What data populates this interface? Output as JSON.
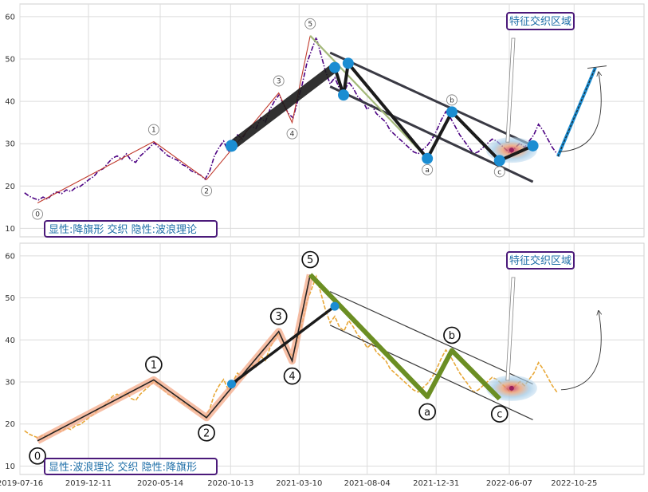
{
  "chart_data": [
    {
      "type": "line",
      "x_axis": {
        "type": "date",
        "range": [
          "2019-07-16",
          "2023-03-25"
        ]
      },
      "y_axis": {
        "range": [
          8,
          63
        ],
        "ticks": [
          10,
          20,
          30,
          40,
          50,
          60
        ]
      },
      "grid": true,
      "line_style": "dash-dot",
      "line_color": "#4b0082",
      "annotation": "显性:降旗形 交织 隐性:波浪理论",
      "zone_label": "特征交织区域",
      "price": [
        [
          "2019-07-26",
          18.4
        ],
        [
          "2019-08-05",
          17.6
        ],
        [
          "2019-08-15",
          17.1
        ],
        [
          "2019-08-25",
          16.7
        ],
        [
          "2019-09-04",
          17.4
        ],
        [
          "2019-09-14",
          16.9
        ],
        [
          "2019-09-24",
          18.1
        ],
        [
          "2019-10-04",
          18.6
        ],
        [
          "2019-10-14",
          18.2
        ],
        [
          "2019-10-24",
          19.1
        ],
        [
          "2019-11-03",
          18.7
        ],
        [
          "2019-11-13",
          19.6
        ],
        [
          "2019-11-23",
          19.9
        ],
        [
          "2019-12-03",
          20.7
        ],
        [
          "2019-12-13",
          21.6
        ],
        [
          "2019-12-23",
          22.3
        ],
        [
          "2020-01-02",
          23.6
        ],
        [
          "2020-01-12",
          24.1
        ],
        [
          "2020-01-22",
          25.4
        ],
        [
          "2020-02-01",
          26.6
        ],
        [
          "2020-02-11",
          27.1
        ],
        [
          "2020-02-21",
          26.3
        ],
        [
          "2020-03-02",
          27.6
        ],
        [
          "2020-03-12",
          26.1
        ],
        [
          "2020-03-22",
          25.6
        ],
        [
          "2020-04-01",
          27.1
        ],
        [
          "2020-04-11",
          28.1
        ],
        [
          "2020-04-21",
          29.1
        ],
        [
          "2020-05-01",
          30.2
        ],
        [
          "2020-05-11",
          29.1
        ],
        [
          "2020-05-21",
          28.1
        ],
        [
          "2020-05-31",
          27.1
        ],
        [
          "2020-06-10",
          26.6
        ],
        [
          "2020-06-20",
          26.1
        ],
        [
          "2020-06-30",
          25.1
        ],
        [
          "2020-07-10",
          24.6
        ],
        [
          "2020-07-20",
          23.6
        ],
        [
          "2020-07-30",
          23.1
        ],
        [
          "2020-08-09",
          22.6
        ],
        [
          "2020-08-19",
          21.6
        ],
        [
          "2020-08-29",
          23.6
        ],
        [
          "2020-09-08",
          27.1
        ],
        [
          "2020-09-18",
          29.1
        ],
        [
          "2020-09-28",
          30.6
        ],
        [
          "2020-10-08",
          28.1
        ],
        [
          "2020-10-18",
          30.1
        ],
        [
          "2020-10-28",
          32.1
        ],
        [
          "2020-11-07",
          31.1
        ],
        [
          "2020-11-17",
          33.1
        ],
        [
          "2020-11-27",
          34.1
        ],
        [
          "2020-12-07",
          33.6
        ],
        [
          "2020-12-17",
          36.1
        ],
        [
          "2020-12-27",
          35.1
        ],
        [
          "2021-01-06",
          38.1
        ],
        [
          "2021-01-16",
          40.1
        ],
        [
          "2021-01-26",
          41.6
        ],
        [
          "2021-02-05",
          39.1
        ],
        [
          "2021-02-15",
          37.1
        ],
        [
          "2021-02-25",
          36.1
        ],
        [
          "2021-03-07",
          40.1
        ],
        [
          "2021-03-17",
          44.1
        ],
        [
          "2021-03-27",
          49.1
        ],
        [
          "2021-04-06",
          52.1
        ],
        [
          "2021-04-16",
          55.1
        ],
        [
          "2021-04-26",
          51.1
        ],
        [
          "2021-05-06",
          47.1
        ],
        [
          "2021-05-16",
          44.1
        ],
        [
          "2021-05-26",
          45.6
        ],
        [
          "2021-06-05",
          43.1
        ],
        [
          "2021-06-15",
          42.1
        ],
        [
          "2021-06-25",
          44.6
        ],
        [
          "2021-07-05",
          43.1
        ],
        [
          "2021-07-15",
          41.1
        ],
        [
          "2021-07-25",
          40.1
        ],
        [
          "2021-08-04",
          38.1
        ],
        [
          "2021-08-14",
          39.1
        ],
        [
          "2021-08-24",
          37.1
        ],
        [
          "2021-09-03",
          36.1
        ],
        [
          "2021-09-13",
          35.1
        ],
        [
          "2021-09-23",
          33.1
        ],
        [
          "2021-10-03",
          32.1
        ],
        [
          "2021-10-13",
          31.1
        ],
        [
          "2021-10-23",
          30.1
        ],
        [
          "2021-11-02",
          29.1
        ],
        [
          "2021-11-12",
          28.1
        ],
        [
          "2021-11-22",
          27.6
        ],
        [
          "2021-12-02",
          28.6
        ],
        [
          "2021-12-12",
          29.6
        ],
        [
          "2021-12-22",
          31.1
        ],
        [
          "2022-01-01",
          33.1
        ],
        [
          "2022-01-11",
          35.6
        ],
        [
          "2022-01-21",
          37.6
        ],
        [
          "2022-01-31",
          36.1
        ],
        [
          "2022-02-10",
          34.1
        ],
        [
          "2022-02-20",
          32.1
        ],
        [
          "2022-03-02",
          30.6
        ],
        [
          "2022-03-12",
          29.1
        ],
        [
          "2022-03-22",
          27.6
        ],
        [
          "2022-04-01",
          28.1
        ],
        [
          "2022-04-11",
          29.1
        ],
        [
          "2022-04-21",
          30.1
        ],
        [
          "2022-05-01",
          31.1
        ],
        [
          "2022-05-11",
          30.6
        ],
        [
          "2022-05-21",
          29.6
        ],
        [
          "2022-05-31",
          28.6
        ],
        [
          "2022-06-10",
          27.6
        ],
        [
          "2022-06-20",
          29.1
        ],
        [
          "2022-06-30",
          30.1
        ],
        [
          "2022-07-10",
          29.1
        ],
        [
          "2022-07-20",
          30.6
        ],
        [
          "2022-07-30",
          32.1
        ],
        [
          "2022-08-09",
          34.6
        ],
        [
          "2022-08-19",
          33.1
        ],
        [
          "2022-08-29",
          31.1
        ],
        [
          "2022-09-08",
          29.1
        ],
        [
          "2022-09-18",
          27.6
        ]
      ],
      "wave_points": [
        {
          "label": "0",
          "date": "2019-08-23",
          "value": 16.0
        },
        {
          "label": "1",
          "date": "2020-04-30",
          "value": 30.5
        },
        {
          "label": "2",
          "date": "2020-08-22",
          "value": 21.5
        },
        {
          "label": "3",
          "date": "2021-01-25",
          "value": 42.0
        },
        {
          "label": "4",
          "date": "2021-02-23",
          "value": 35.0
        },
        {
          "label": "5",
          "date": "2021-04-03",
          "value": 55.5
        },
        {
          "label": "a",
          "date": "2021-12-12",
          "value": 26.5
        },
        {
          "label": "b",
          "date": "2022-02-03",
          "value": 37.5
        },
        {
          "label": "c",
          "date": "2022-05-17",
          "value": 26.0
        }
      ],
      "pattern_points": [
        {
          "date": "2020-10-15",
          "value": 29.5
        },
        {
          "date": "2021-05-26",
          "value": 48.0
        },
        {
          "date": "2021-06-14",
          "value": 41.5
        },
        {
          "date": "2021-06-24",
          "value": 49.0
        },
        {
          "date": "2021-12-12",
          "value": 26.5
        },
        {
          "date": "2022-02-03",
          "value": 37.5
        },
        {
          "date": "2022-05-17",
          "value": 26.0
        },
        {
          "date": "2022-07-28",
          "value": 29.5
        }
      ],
      "channel_upper": [
        {
          "date": "2021-05-16",
          "value": 51.5
        },
        {
          "date": "2022-07-28",
          "value": 29.5
        }
      ],
      "channel_lower": [
        {
          "date": "2021-05-16",
          "value": 43.5
        },
        {
          "date": "2022-07-28",
          "value": 21.0
        }
      ],
      "breakout_target": [
        {
          "date": "2022-09-20",
          "value": 27.0
        },
        {
          "date": "2022-12-10",
          "value": 48.0
        }
      ]
    },
    {
      "type": "line",
      "x_axis": {
        "type": "date",
        "range": [
          "2019-07-16",
          "2023-03-25"
        ],
        "tick_labels": [
          "2019-07-16",
          "2019-12-11",
          "2020-05-14",
          "2020-10-13",
          "2021-03-10",
          "2021-08-04",
          "2021-12-31",
          "2022-06-07",
          "2022-10-25"
        ]
      },
      "y_axis": {
        "range": [
          8,
          63
        ],
        "ticks": [
          10,
          20,
          30,
          40,
          50,
          60
        ]
      },
      "grid": true,
      "line_style": "dashed",
      "line_color": "#e8a838",
      "annotation": "显性:波浪理论 交织 隐性:降旗形",
      "zone_label": "特征交织区域",
      "wave_points": [
        {
          "label": "0",
          "date": "2019-08-23",
          "value": 16.0
        },
        {
          "label": "1",
          "date": "2020-04-30",
          "value": 30.5
        },
        {
          "label": "2",
          "date": "2020-08-22",
          "value": 21.5
        },
        {
          "label": "3",
          "date": "2021-01-25",
          "value": 42.0
        },
        {
          "label": "4",
          "date": "2021-02-23",
          "value": 35.0
        },
        {
          "label": "5",
          "date": "2021-04-03",
          "value": 55.5
        },
        {
          "label": "a",
          "date": "2021-12-12",
          "value": 26.5
        },
        {
          "label": "b",
          "date": "2022-02-03",
          "value": 37.5
        },
        {
          "label": "c",
          "date": "2022-05-17",
          "value": 26.0
        }
      ],
      "pattern_points": [
        {
          "date": "2020-10-15",
          "value": 29.5
        },
        {
          "date": "2021-05-26",
          "value": 48.0
        }
      ],
      "channel_upper": [
        {
          "date": "2021-05-16",
          "value": 51.5
        },
        {
          "date": "2022-07-28",
          "value": 29.5
        }
      ],
      "channel_lower": [
        {
          "date": "2021-05-16",
          "value": 43.5
        },
        {
          "date": "2022-07-28",
          "value": 21.0
        }
      ],
      "breakout_target": [
        {
          "date": "2022-09-20",
          "value": 27.0
        },
        {
          "date": "2022-12-10",
          "value": 48.0
        }
      ]
    }
  ]
}
